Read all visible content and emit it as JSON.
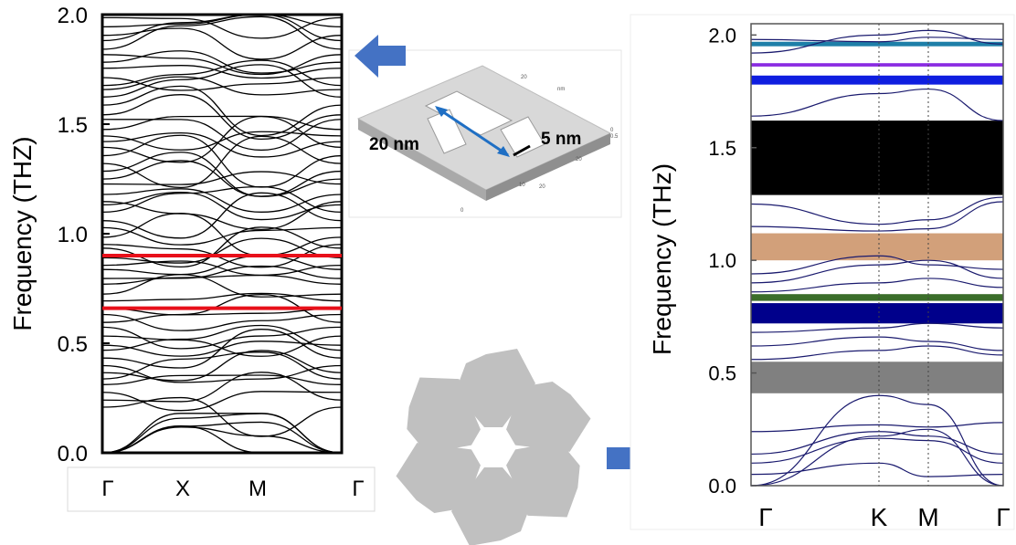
{
  "chart_data": [
    {
      "type": "line",
      "ylabel": "Frequency (THZ)",
      "ylim": [
        0.0,
        2.0
      ],
      "yticks": [
        "0.0",
        "0.5",
        "1.0",
        "1.5",
        "2.0"
      ],
      "x_ticks": [
        "Γ",
        "X",
        "M",
        "Γ"
      ],
      "band_color": "#000000",
      "highlight_lines": [
        {
          "frequency": 0.9,
          "color": "#e8101a"
        },
        {
          "frequency": 0.66,
          "color": "#e8101a"
        }
      ]
    },
    {
      "type": "line",
      "ylabel": "Frequency (THz)",
      "ylim": [
        0.0,
        2.05
      ],
      "yticks": [
        "0.0",
        "0.5",
        "1.0",
        "1.5",
        "2.0"
      ],
      "x_ticks": [
        "Γ",
        "K",
        "M",
        "Γ"
      ],
      "band_color": "#1a1a6e",
      "band_gaps": [
        {
          "from": 1.95,
          "to": 1.97,
          "color": "#1e7fa8"
        },
        {
          "from": 1.86,
          "to": 1.875,
          "color": "#8a2be2"
        },
        {
          "from": 1.78,
          "to": 1.82,
          "color": "#0f1ee0"
        },
        {
          "from": 1.29,
          "to": 1.62,
          "color": "#000000"
        },
        {
          "from": 1.0,
          "to": 1.12,
          "color": "#d2a07a"
        },
        {
          "from": 0.82,
          "to": 0.85,
          "color": "#3b6e2a"
        },
        {
          "from": 0.72,
          "to": 0.81,
          "color": "#00008b"
        },
        {
          "from": 0.41,
          "to": 0.55,
          "color": "#808080"
        }
      ]
    }
  ],
  "inset": {
    "dim_long": "20 nm",
    "dim_short": "5 nm",
    "axis_ticks": [
      "20",
      "nm",
      "0",
      "0.5",
      "20",
      "10",
      "20",
      "0"
    ]
  },
  "colors": {
    "arrow": "#4472c4",
    "rotor": "#c0c0c0",
    "inset_plate": "#d4d4d4",
    "dim_long_arrow": "#1f6fc4",
    "dim_short_arrow": "#000000"
  }
}
